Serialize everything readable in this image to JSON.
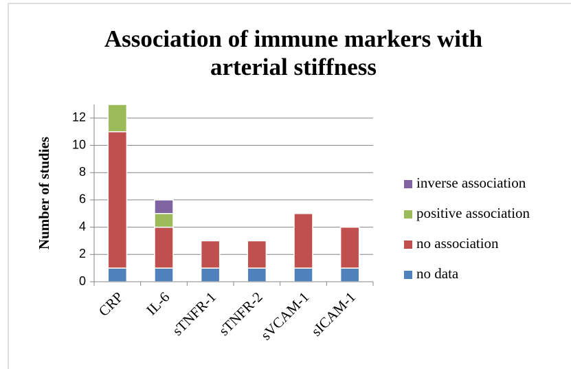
{
  "chart_data": {
    "type": "stacked-bar",
    "title": [
      "Association of immune markers with",
      "arterial stiffness"
    ],
    "y_label": "Number of studies",
    "categories": [
      "CRP",
      "IL-6",
      "sTNFR-1",
      "sTNFR-2",
      "sVCAM-1",
      "sICAM-1"
    ],
    "series": [
      {
        "name": "no data",
        "color": "#4f81bd",
        "values": [
          1,
          1,
          1,
          1,
          1,
          1
        ]
      },
      {
        "name": "no association",
        "color": "#c0504d",
        "values": [
          10,
          3,
          2,
          2,
          4,
          3
        ]
      },
      {
        "name": "positive association",
        "color": "#9bbb59",
        "values": [
          2,
          1,
          0,
          0,
          0,
          0
        ]
      },
      {
        "name": "inverse association",
        "color": "#8064a2",
        "values": [
          0,
          1,
          0,
          0,
          0,
          0
        ]
      }
    ],
    "ylim": [
      0,
      13
    ],
    "yticks": [
      0,
      2,
      4,
      6,
      8,
      10,
      12
    ],
    "grid": true,
    "legend": "right"
  }
}
